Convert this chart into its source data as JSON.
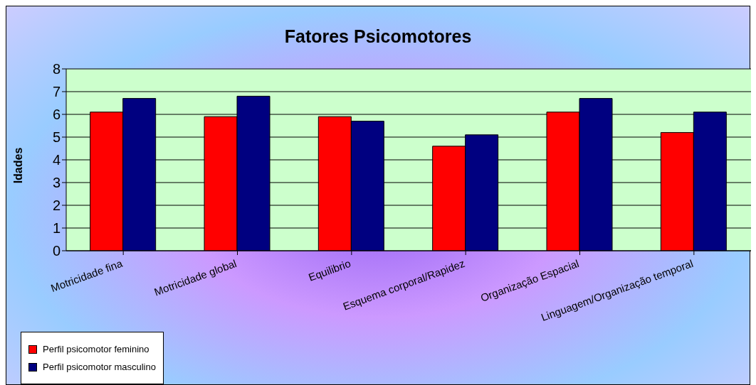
{
  "chart_data": {
    "type": "bar",
    "title": "Fatores Psicomotores",
    "ylabel": "Idades",
    "categories": [
      "Motricidade fina",
      "Motricidade global",
      "Equilibrio",
      "Esquema corporal/Rapidez",
      "Organização Espacial",
      "Linguagem/Organização temporal"
    ],
    "series": [
      {
        "name": "Perfil psicomotor feminino",
        "color": "#ff0000",
        "values": [
          6.1,
          5.9,
          5.9,
          4.6,
          6.1,
          5.2
        ]
      },
      {
        "name": "Perfil psicomotor masculino",
        "color": "#000080",
        "values": [
          6.7,
          6.8,
          5.7,
          5.1,
          6.7,
          6.1
        ]
      }
    ],
    "ylim": [
      0,
      8
    ],
    "yticks": [
      0,
      1,
      2,
      3,
      4,
      5,
      6,
      7,
      8
    ],
    "grid": "y",
    "legend": "bottom left"
  }
}
